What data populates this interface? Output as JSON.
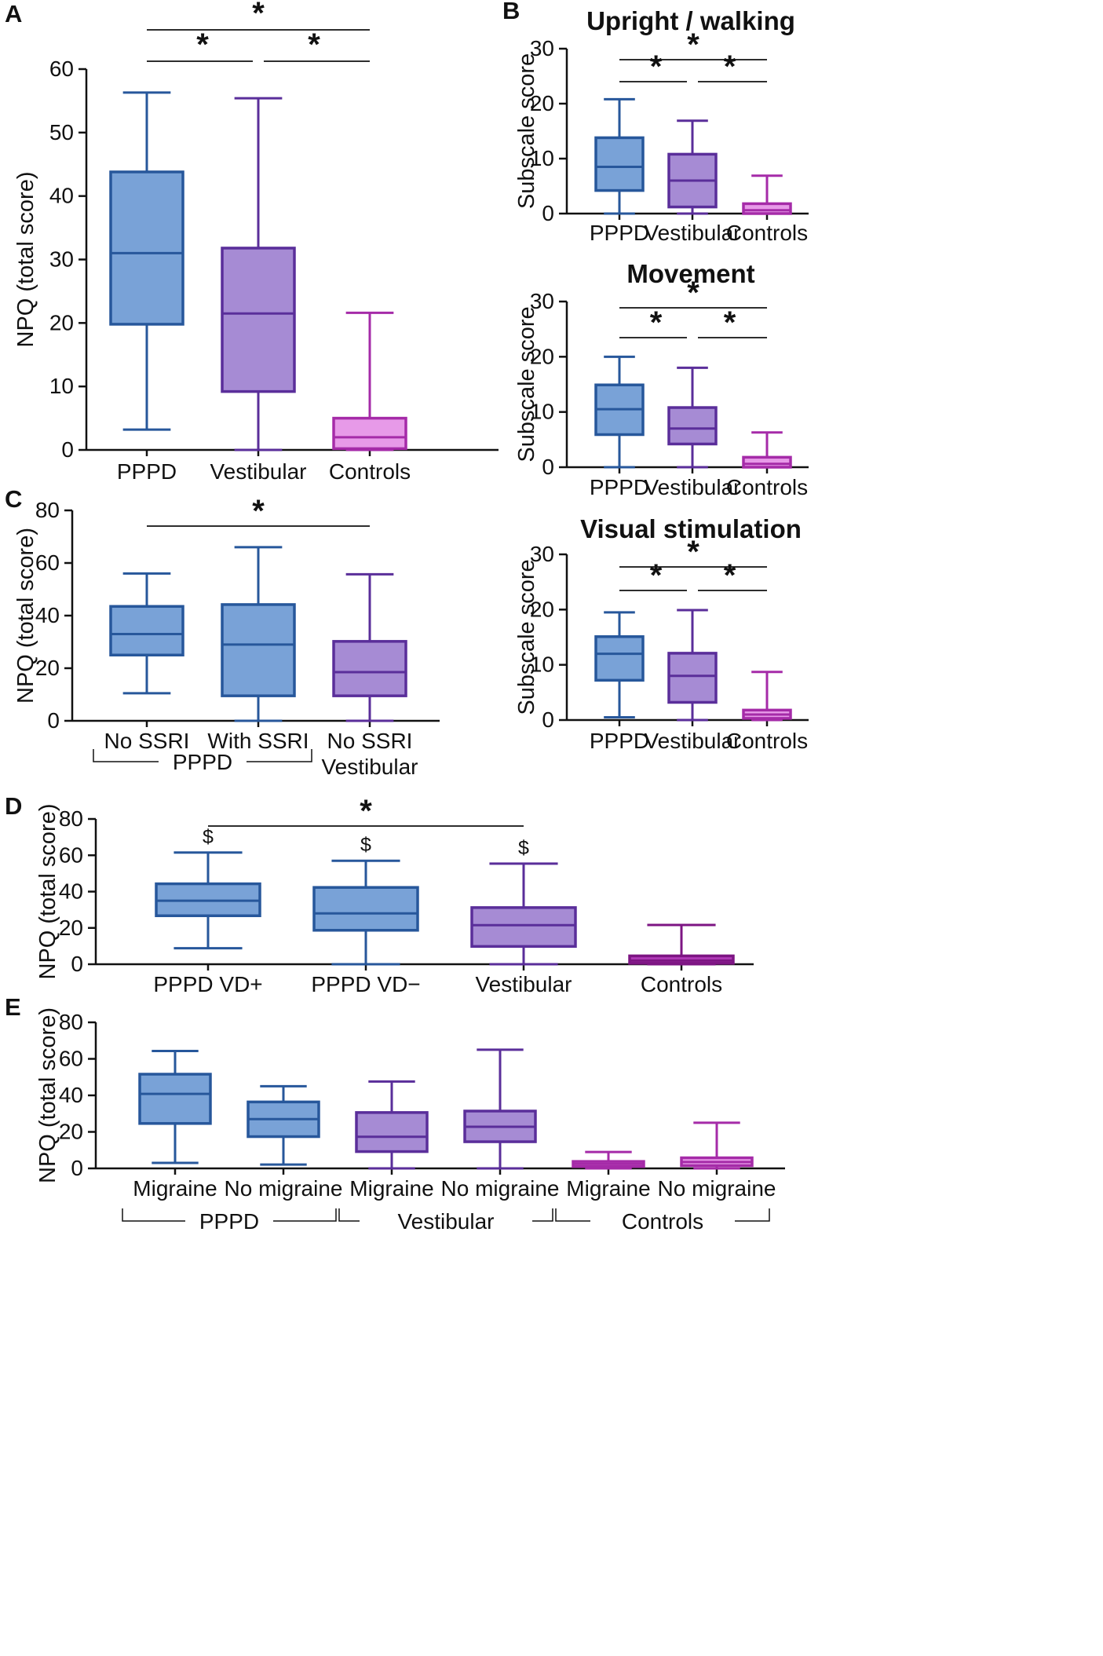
{
  "colors": {
    "pppd_fill": "#79a2d7",
    "pppd_stroke": "#27579b",
    "vest_fill": "#a68bd4",
    "vest_stroke": "#5a2e9a",
    "ctrl_fill": "#e79ae8",
    "ctrl_stroke": "#a52ba8",
    "ctrl_dark_fill": "#b03ab7",
    "ctrl_dark_stroke": "#7d1583"
  },
  "chart_data": [
    {
      "id": "A",
      "type": "box",
      "panel_letter": "A",
      "title": "",
      "ylabel": "NPQ (total score)",
      "ylim": [
        0,
        60
      ],
      "yticks": [
        0,
        10,
        20,
        30,
        40,
        50,
        60
      ],
      "categories": [
        "PPPD",
        "Vestibular",
        "Controls"
      ],
      "series": [
        {
          "name": "PPPD",
          "color": "pppd",
          "min": 3.2,
          "q1": 19.8,
          "median": 31,
          "q3": 43.8,
          "max": 56.3
        },
        {
          "name": "Vestibular",
          "color": "vest",
          "min": 0,
          "q1": 9.2,
          "median": 21.5,
          "q3": 31.8,
          "max": 55.4
        },
        {
          "name": "Controls",
          "color": "ctrl",
          "min": 0,
          "q1": 0.2,
          "median": 2,
          "q3": 5,
          "max": 21.6
        }
      ],
      "annotations": [
        {
          "from": 0,
          "to": 2,
          "level": 2,
          "text": "*"
        },
        {
          "from": 0,
          "to": 1,
          "level": 1,
          "text": "*"
        },
        {
          "from": 1,
          "to": 2,
          "level": 1,
          "text": "*"
        }
      ]
    },
    {
      "id": "B1",
      "type": "box",
      "panel_letter": "B",
      "title": "Upright / walking",
      "ylabel": "Subscale score",
      "ylim": [
        0,
        30
      ],
      "yticks": [
        0,
        10,
        20,
        30
      ],
      "categories": [
        "PPPD",
        "Vestibular",
        "Controls"
      ],
      "series": [
        {
          "name": "PPPD",
          "color": "pppd",
          "min": 0,
          "q1": 4.2,
          "median": 8.5,
          "q3": 13.8,
          "max": 20.8
        },
        {
          "name": "Vestibular",
          "color": "vest",
          "min": 0,
          "q1": 1.2,
          "median": 6,
          "q3": 10.8,
          "max": 16.9
        },
        {
          "name": "Controls",
          "color": "ctrl",
          "min": 0,
          "q1": 0,
          "median": 0.6,
          "q3": 1.8,
          "max": 6.9
        }
      ],
      "annotations": [
        {
          "from": 0,
          "to": 2,
          "level": 2,
          "text": "*"
        },
        {
          "from": 0,
          "to": 1,
          "level": 1,
          "text": "*"
        },
        {
          "from": 1,
          "to": 2,
          "level": 1,
          "text": "*"
        }
      ]
    },
    {
      "id": "B2",
      "type": "box",
      "panel_letter": "",
      "title": "Movement",
      "ylabel": "Subscale score",
      "ylim": [
        0,
        30
      ],
      "yticks": [
        0,
        10,
        20,
        30
      ],
      "categories": [
        "PPPD",
        "Vestibular",
        "Controls"
      ],
      "series": [
        {
          "name": "PPPD",
          "color": "pppd",
          "min": 0,
          "q1": 5.9,
          "median": 10.5,
          "q3": 14.9,
          "max": 20
        },
        {
          "name": "Vestibular",
          "color": "vest",
          "min": 0,
          "q1": 4.2,
          "median": 7,
          "q3": 10.8,
          "max": 18
        },
        {
          "name": "Controls",
          "color": "ctrl",
          "min": 0,
          "q1": 0,
          "median": 0.6,
          "q3": 1.8,
          "max": 6.3
        }
      ],
      "annotations": [
        {
          "from": 0,
          "to": 2,
          "level": 2,
          "text": "*"
        },
        {
          "from": 0,
          "to": 1,
          "level": 1,
          "text": "*"
        },
        {
          "from": 1,
          "to": 2,
          "level": 1,
          "text": "*"
        }
      ]
    },
    {
      "id": "B3",
      "type": "box",
      "panel_letter": "",
      "title": "Visual stimulation",
      "ylabel": "Subscale score",
      "ylim": [
        0,
        30
      ],
      "yticks": [
        0,
        10,
        20,
        30
      ],
      "categories": [
        "PPPD",
        "Vestibular",
        "Controls"
      ],
      "series": [
        {
          "name": "PPPD",
          "color": "pppd",
          "min": 0.5,
          "q1": 7.2,
          "median": 12,
          "q3": 15.1,
          "max": 19.5
        },
        {
          "name": "Vestibular",
          "color": "vest",
          "min": 0,
          "q1": 3.2,
          "median": 8,
          "q3": 12.1,
          "max": 19.9
        },
        {
          "name": "Controls",
          "color": "ctrl",
          "min": 0,
          "q1": 0.3,
          "median": 1,
          "q3": 1.8,
          "max": 8.7
        }
      ],
      "annotations": [
        {
          "from": 0,
          "to": 2,
          "level": 2,
          "text": "*"
        },
        {
          "from": 0,
          "to": 1,
          "level": 1,
          "text": "*"
        },
        {
          "from": 1,
          "to": 2,
          "level": 1,
          "text": "*"
        }
      ]
    },
    {
      "id": "C",
      "type": "box",
      "panel_letter": "C",
      "title": "",
      "ylabel": "NPQ (total score)",
      "ylim": [
        0,
        80
      ],
      "yticks": [
        0,
        20,
        40,
        60,
        80
      ],
      "categories": [
        "No SSRI",
        "With SSRI",
        "No SSRI\nVestibular"
      ],
      "series": [
        {
          "name": "No SSRI",
          "color": "pppd",
          "min": 10.5,
          "q1": 25,
          "median": 33,
          "q3": 43.5,
          "max": 56
        },
        {
          "name": "With SSRI",
          "color": "pppd",
          "min": 0,
          "q1": 9.5,
          "median": 29,
          "q3": 44.2,
          "max": 66
        },
        {
          "name": "No SSRI Vestibular",
          "color": "vest",
          "min": 0,
          "q1": 9.5,
          "median": 18.5,
          "q3": 30.2,
          "max": 55.7
        }
      ],
      "groups": [
        {
          "label": "PPPD",
          "from": 0,
          "to": 1
        }
      ],
      "annotations": [
        {
          "from": 0,
          "to": 2,
          "level": 1,
          "text": "*"
        }
      ]
    },
    {
      "id": "D",
      "type": "box",
      "panel_letter": "D",
      "title": "",
      "ylabel": "NPQ (total score)",
      "ylim": [
        0,
        80
      ],
      "yticks": [
        0,
        20,
        40,
        60,
        80
      ],
      "categories": [
        "PPPD VD+",
        "PPPD VD−",
        "Vestibular",
        "Controls"
      ],
      "series": [
        {
          "name": "PPPD VD+",
          "color": "pppd",
          "min": 8.8,
          "q1": 26.7,
          "median": 35,
          "q3": 44.3,
          "max": 61.5
        },
        {
          "name": "PPPD VD−",
          "color": "pppd",
          "min": 0,
          "q1": 18.7,
          "median": 28,
          "q3": 42.3,
          "max": 57
        },
        {
          "name": "Vestibular",
          "color": "vest",
          "min": 0,
          "q1": 9.8,
          "median": 21.5,
          "q3": 31.2,
          "max": 55.4
        },
        {
          "name": "Controls",
          "color": "ctrl_dark",
          "min": 0,
          "q1": 0.5,
          "median": 2,
          "q3": 4.6,
          "max": 21.6
        }
      ],
      "symbols": [
        "$",
        "$",
        "$",
        ""
      ],
      "annotations": [
        {
          "from": 0,
          "to": 2,
          "level": 1,
          "text": "*"
        }
      ]
    },
    {
      "id": "E",
      "type": "box",
      "panel_letter": "E",
      "title": "",
      "ylabel": "NPQ (total score)",
      "ylim": [
        0,
        80
      ],
      "yticks": [
        0,
        20,
        40,
        60,
        80
      ],
      "categories": [
        "Migraine",
        "No migraine",
        "Migraine",
        "No migraine",
        "Migraine",
        "No migraine"
      ],
      "series": [
        {
          "name": "PPPD Migraine",
          "color": "pppd",
          "min": 3,
          "q1": 24.6,
          "median": 40.8,
          "q3": 51.6,
          "max": 64.3
        },
        {
          "name": "PPPD No migraine",
          "color": "pppd",
          "min": 2.1,
          "q1": 17.4,
          "median": 27,
          "q3": 36.4,
          "max": 45
        },
        {
          "name": "Vestibular Migraine",
          "color": "vest",
          "min": 0,
          "q1": 9.2,
          "median": 17.3,
          "q3": 30.6,
          "max": 47.6
        },
        {
          "name": "Vestibular No migraine",
          "color": "vest",
          "min": 0,
          "q1": 14.6,
          "median": 22.8,
          "q3": 31.4,
          "max": 65
        },
        {
          "name": "Controls Migraine",
          "color": "ctrl",
          "min": 0,
          "q1": 1,
          "median": 2.4,
          "q3": 3.8,
          "max": 9
        },
        {
          "name": "Controls No migraine",
          "color": "ctrl",
          "min": 0,
          "q1": 1.5,
          "median": 3.5,
          "q3": 5.8,
          "max": 25
        }
      ],
      "groups": [
        {
          "label": "PPPD",
          "from": 0,
          "to": 1
        },
        {
          "label": "Vestibular",
          "from": 2,
          "to": 3
        },
        {
          "label": "Controls",
          "from": 4,
          "to": 5
        }
      ],
      "annotations": []
    }
  ]
}
